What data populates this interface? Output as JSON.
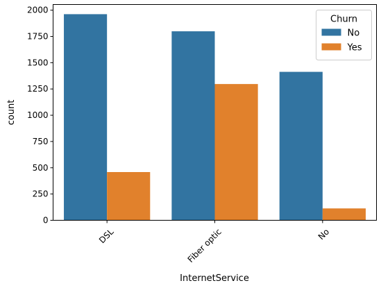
{
  "chart_data": {
    "type": "bar",
    "title": "",
    "xlabel": "InternetService",
    "ylabel": "count",
    "categories": [
      "DSL",
      "Fiber optic",
      "No"
    ],
    "series": [
      {
        "name": "No",
        "color": "#3274a1",
        "values": [
          1962,
          1799,
          1413
        ]
      },
      {
        "name": "Yes",
        "color": "#e1812c",
        "values": [
          459,
          1297,
          113
        ]
      }
    ],
    "ylim": [
      0,
      2054
    ],
    "yticks": [
      0,
      250,
      500,
      750,
      1000,
      1250,
      1500,
      1750,
      2000
    ],
    "grid": false,
    "legend": {
      "title": "Churn",
      "placement": "top-right"
    }
  }
}
